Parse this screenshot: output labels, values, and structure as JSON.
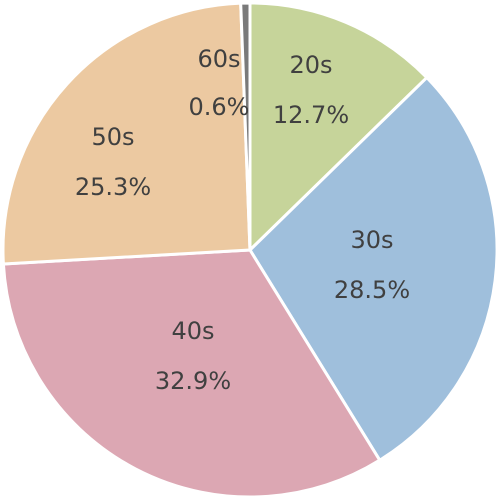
{
  "chart_data": {
    "type": "pie",
    "start_angle_deg": 0,
    "direction": "clockwise",
    "slices": [
      {
        "label": "20s",
        "value": 12.7,
        "display": "12.7%",
        "color": "#c6d49a"
      },
      {
        "label": "30s",
        "value": 28.5,
        "display": "28.5%",
        "color": "#9fbfdc"
      },
      {
        "label": "40s",
        "value": 32.9,
        "display": "32.9%",
        "color": "#dca7b3"
      },
      {
        "label": "50s",
        "value": 25.3,
        "display": "25.3%",
        "color": "#ecc9a1"
      },
      {
        "label": "60s",
        "value": 0.6,
        "display": "0.6%",
        "color": "#7a7a7a"
      }
    ],
    "legend": "none",
    "title": ""
  }
}
